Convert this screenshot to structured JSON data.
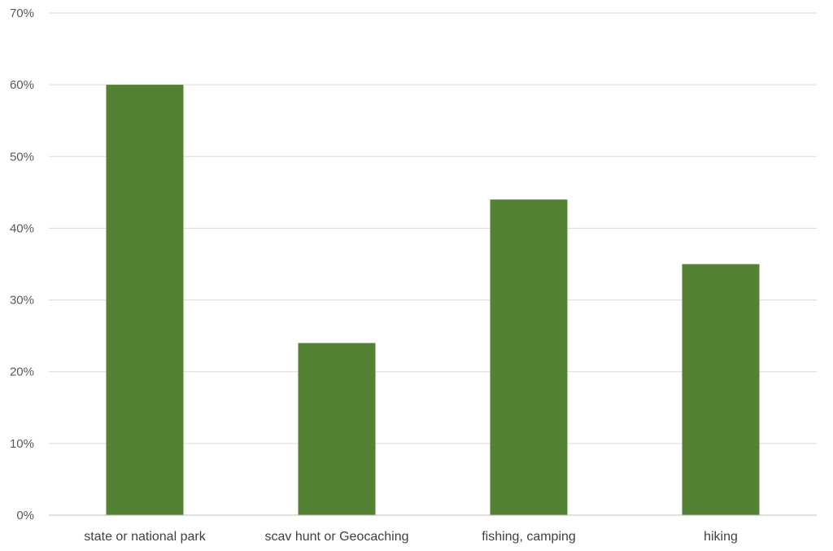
{
  "chart_data": {
    "type": "bar",
    "categories": [
      "state or national park",
      "scav hunt or Geocaching",
      "fishing, camping",
      "hiking"
    ],
    "values": [
      60,
      24,
      44,
      35
    ],
    "yticks": [
      "0%",
      "10%",
      "20%",
      "30%",
      "40%",
      "50%",
      "60%",
      "70%"
    ],
    "ylim": [
      0,
      70
    ],
    "grid": true,
    "bar_color": "#548235",
    "gridline_color": "#d9d9d9",
    "axis_color": "#bfbfbf"
  }
}
